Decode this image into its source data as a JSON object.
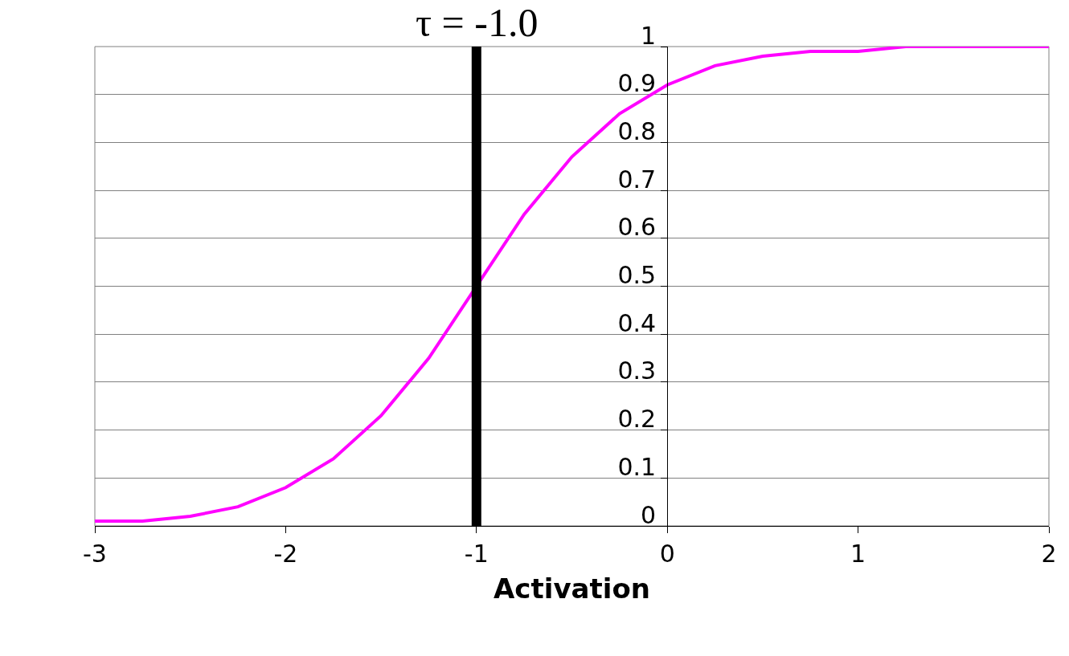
{
  "chart_data": {
    "type": "line",
    "xlabel": "Activation",
    "x": [
      -3,
      -2.75,
      -2.5,
      -2.25,
      -2,
      -1.75,
      -1.5,
      -1.25,
      -0.75,
      -0.5,
      -0.25,
      0,
      0.25,
      0.5,
      0.75,
      1,
      1.25,
      1.5,
      1.75,
      2
    ],
    "series": [
      {
        "color": "#ff00ff",
        "values": [
          0.01,
          0.01,
          0.02,
          0.04,
          0.08,
          0.14,
          0.23,
          0.35,
          0.65,
          0.77,
          0.86,
          0.92,
          0.96,
          0.98,
          0.99,
          0.99,
          1.0,
          1.0,
          1.0,
          1.0
        ]
      }
    ],
    "xlim": [
      -3,
      2
    ],
    "xticks": [
      -3,
      -2,
      -1,
      0,
      1,
      2
    ],
    "ylim": [
      0,
      1
    ],
    "yticks": [
      0,
      0.1,
      0.2,
      0.3,
      0.4,
      0.5,
      0.6,
      0.7,
      0.8,
      0.9,
      1
    ],
    "grid": "y",
    "marker": "none",
    "line_style": "solid",
    "ref_lines": [
      {
        "axis": "x",
        "value": -1,
        "label": "τ = -1.0",
        "color": "#000000"
      }
    ]
  }
}
